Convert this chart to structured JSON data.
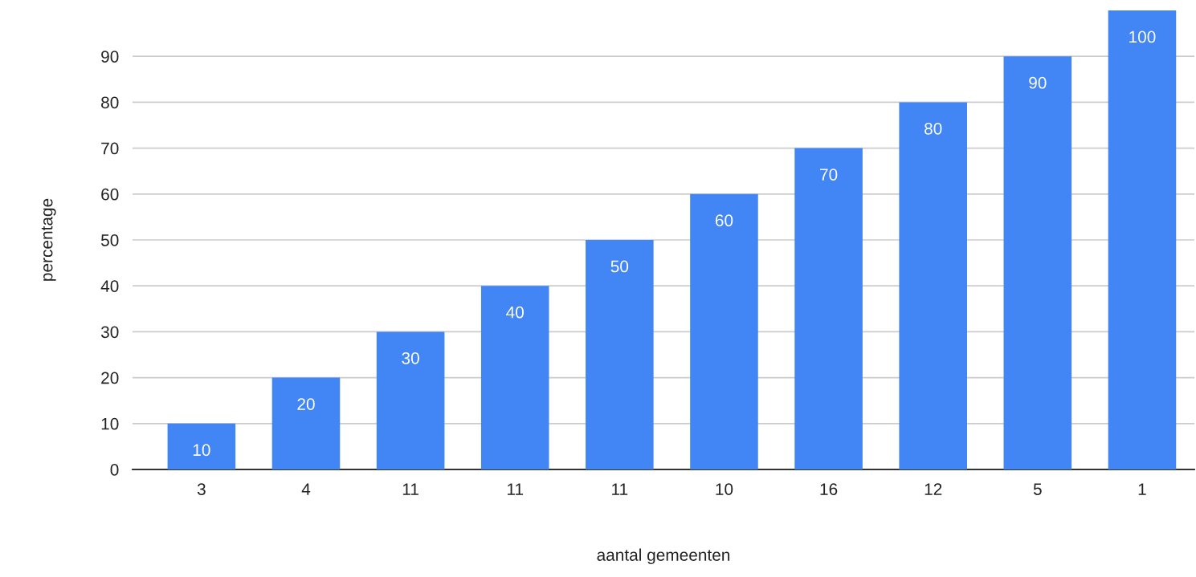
{
  "chart_data": {
    "type": "bar",
    "xlabel": "aantal gemeenten",
    "ylabel": "percentage",
    "categories": [
      "3",
      "4",
      "11",
      "11",
      "11",
      "10",
      "16",
      "12",
      "5",
      "1"
    ],
    "values": [
      10,
      20,
      30,
      40,
      50,
      60,
      70,
      80,
      90,
      100
    ],
    "color": "#4285f4",
    "ylim": [
      0,
      100
    ],
    "yticks": [
      0,
      10,
      20,
      30,
      40,
      50,
      60,
      70,
      80,
      90
    ],
    "grid": "y",
    "data_labels": true,
    "legend": false
  }
}
